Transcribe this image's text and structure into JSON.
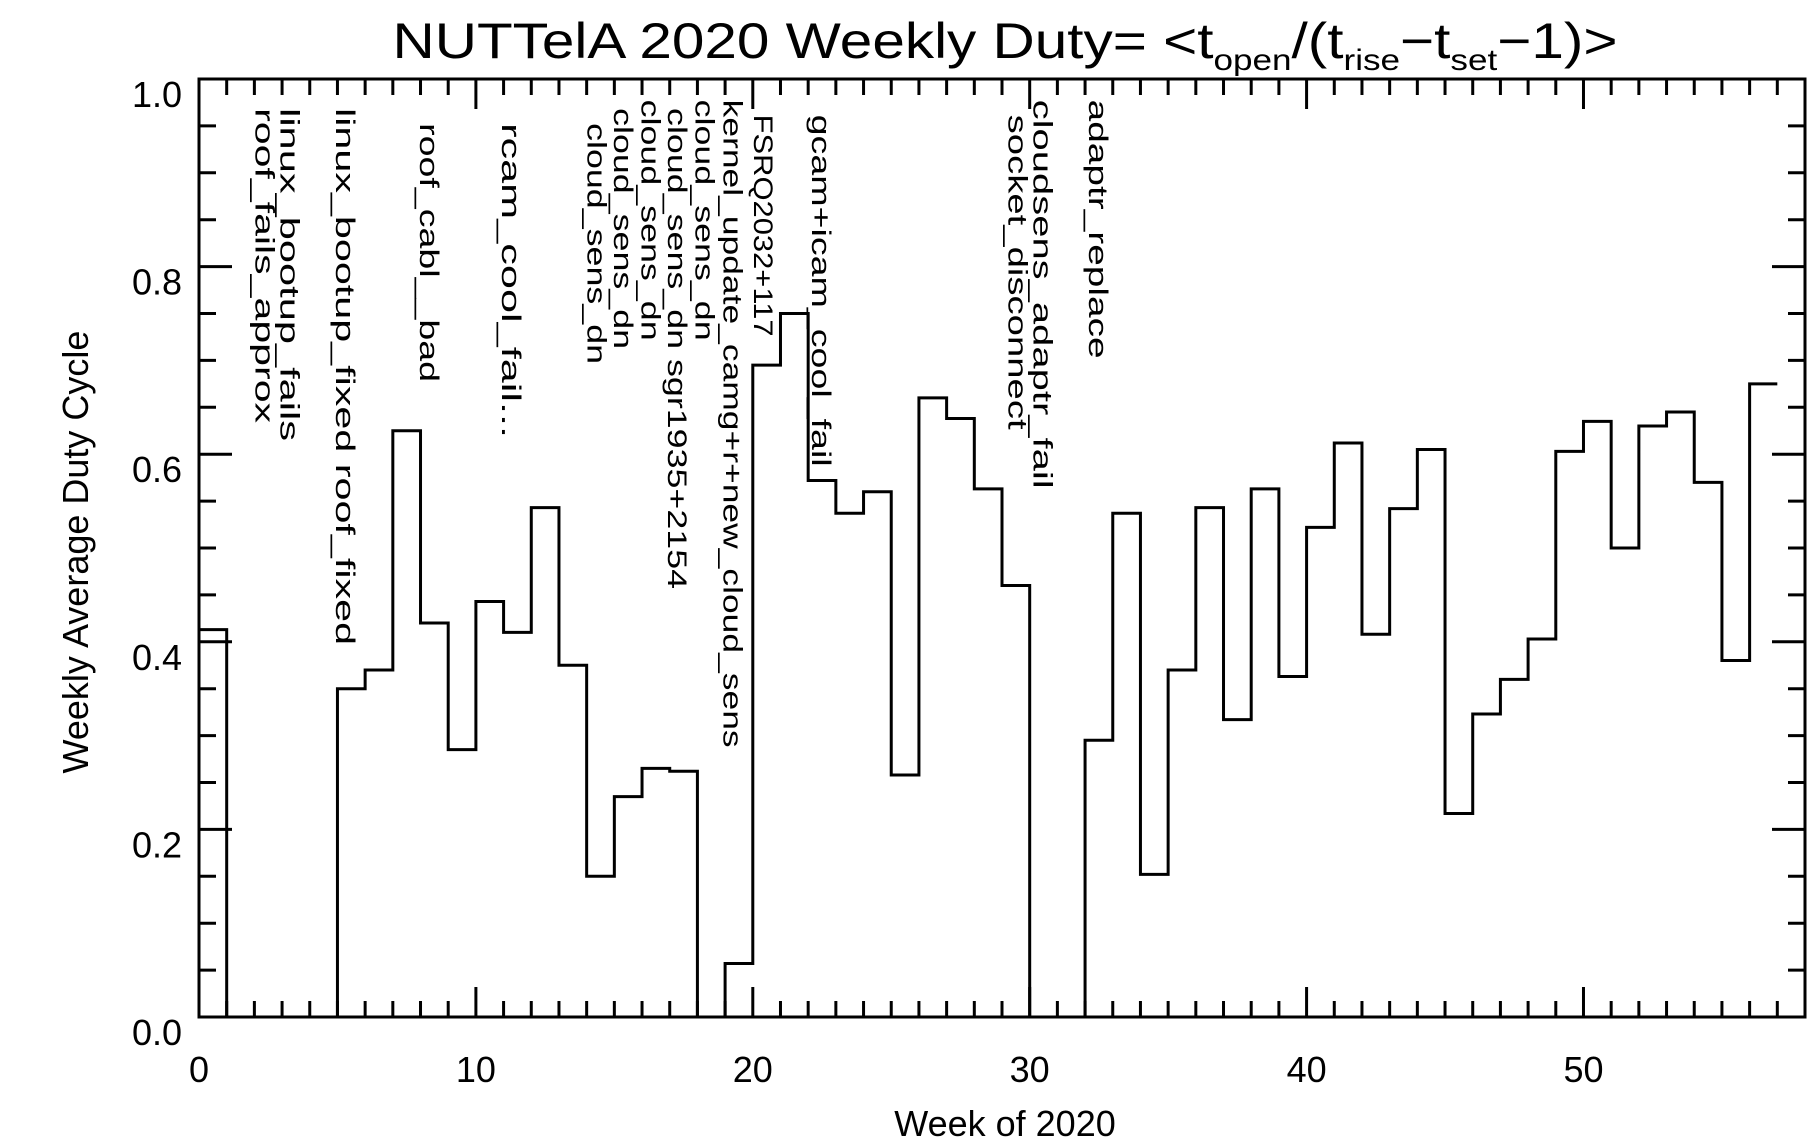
{
  "chart_data": {
    "type": "line",
    "style": "histogram-step",
    "title": "NUTTelA 2020 Weekly Duty= <topen/(trise−tset−1)>",
    "title_parts": {
      "main": "NUTTelA 2020 Weekly Duty= <t",
      "sub1": "open",
      "mid1": "/(t",
      "sub2": "rise",
      "mid2": "−t",
      "sub3": "set",
      "end": "−1)>"
    },
    "xlabel": "Week of 2020",
    "ylabel": "Weekly Average Duty Cycle",
    "xlim": [
      0,
      58
    ],
    "ylim": [
      0,
      1.0
    ],
    "x_ticks": [
      0,
      10,
      20,
      30,
      40,
      50
    ],
    "x_tick_labels": [
      "0",
      "10",
      "20",
      "30",
      "40",
      "50"
    ],
    "x_minor_step": 1,
    "y_ticks": [
      0,
      0.2,
      0.4,
      0.6,
      0.8,
      1.0
    ],
    "y_tick_labels": [
      "0.0",
      "0.2",
      "0.4",
      "0.6",
      "0.8",
      "1.0"
    ],
    "y_minor_step": 0.05,
    "grid": false,
    "color": "#000000",
    "weeks": [
      0,
      1,
      2,
      3,
      4,
      5,
      6,
      7,
      8,
      9,
      10,
      11,
      12,
      13,
      14,
      15,
      16,
      17,
      18,
      19,
      20,
      21,
      22,
      23,
      24,
      25,
      26,
      27,
      28,
      29,
      30,
      31,
      32,
      33,
      34,
      35,
      36,
      37,
      38,
      39,
      40,
      41,
      42,
      43,
      44,
      45,
      46,
      47,
      48,
      49,
      50,
      51,
      52,
      53,
      54,
      55,
      56
    ],
    "values": [
      0.413,
      0,
      0,
      0,
      0,
      0.35,
      0.37,
      0.625,
      0.42,
      0.285,
      0.443,
      0.41,
      0.543,
      0.375,
      0.15,
      0.235,
      0.265,
      0.262,
      0,
      0.057,
      0.695,
      0.75,
      0.572,
      0.537,
      0.56,
      0.258,
      0.66,
      0.638,
      0.563,
      0.46,
      0,
      0,
      0.295,
      0.537,
      0.152,
      0.37,
      0.543,
      0.317,
      0.563,
      0.363,
      0.522,
      0.612,
      0.408,
      0.542,
      0.605,
      0.217,
      0.323,
      0.36,
      0.403,
      0.603,
      0.635,
      0.5,
      0.63,
      0.645,
      0.57,
      0.38,
      0.675
    ],
    "annotations": [
      {
        "week": 2.4,
        "y": 0.969,
        "text": "roof_fails_approx"
      },
      {
        "week": 3.3,
        "y": 0.969,
        "text": "linux_bootup_fails"
      },
      {
        "week": 5.3,
        "y": 0.969,
        "text": "linux_bootup_fixed roof_fixed"
      },
      {
        "week": 8.35,
        "y": 0.953,
        "text": "roof_cabl__bad"
      },
      {
        "week": 11.3,
        "y": 0.953,
        "text": "rcam_cool_fail..."
      },
      {
        "week": 14.4,
        "y": 0.953,
        "text": "cloud_sens_dn"
      },
      {
        "week": 15.35,
        "y": 0.969,
        "text": "cloud_sens_dn"
      },
      {
        "week": 16.35,
        "y": 0.978,
        "text": "cloud_sens_dn"
      },
      {
        "week": 17.3,
        "y": 0.969,
        "text": "cloud_sens_dn sgr1935+2154"
      },
      {
        "week": 18.3,
        "y": 0.978,
        "text": "cloud_sens_dn"
      },
      {
        "week": 19.3,
        "y": 0.978,
        "text": "kernel_update_camg+r+new_cloud_sens"
      },
      {
        "week": 20.4,
        "y": 0.962,
        "text": "FSRQ2032+117"
      },
      {
        "week": 22.5,
        "y": 0.962,
        "text": "gcam+icam_cool_fail"
      },
      {
        "week": 29.6,
        "y": 0.962,
        "text": "socket_disconnect"
      },
      {
        "week": 30.5,
        "y": 0.978,
        "text": "cloudsens_adaptr_fail"
      },
      {
        "week": 32.5,
        "y": 0.978,
        "text": "adaptr_replace"
      }
    ]
  }
}
